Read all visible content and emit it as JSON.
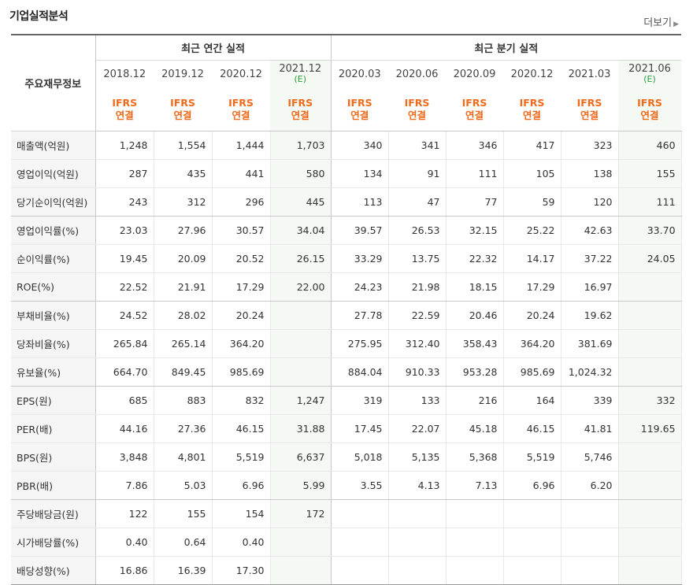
{
  "header": {
    "title": "기업실적분석",
    "more_label": "더보기"
  },
  "table": {
    "row_header_label": "주요재무정보",
    "annual_label": "최근 연간 실적",
    "quarter_label": "최근 분기 실적",
    "estimate_mark": "(E)",
    "periods": [
      {
        "label": "2018.12",
        "ifrs": "IFRS",
        "consol": "연결"
      },
      {
        "label": "2019.12",
        "ifrs": "IFRS",
        "consol": "연결"
      },
      {
        "label": "2020.12",
        "ifrs": "IFRS",
        "consol": "연결"
      },
      {
        "label": "2021.12",
        "ifrs": "IFRS",
        "consol": "연결"
      },
      {
        "label": "2020.03",
        "ifrs": "IFRS",
        "consol": "연결"
      },
      {
        "label": "2020.06",
        "ifrs": "IFRS",
        "consol": "연결"
      },
      {
        "label": "2020.09",
        "ifrs": "IFRS",
        "consol": "연결"
      },
      {
        "label": "2020.12",
        "ifrs": "IFRS",
        "consol": "연결"
      },
      {
        "label": "2021.03",
        "ifrs": "IFRS",
        "consol": "연결"
      },
      {
        "label": "2021.06",
        "ifrs": "IFRS",
        "consol": "연결"
      }
    ],
    "rows": [
      {
        "label": "매출액(억원)",
        "values": [
          "1,248",
          "1,554",
          "1,444",
          "1,703",
          "340",
          "341",
          "346",
          "417",
          "323",
          "460"
        ]
      },
      {
        "label": "영업이익(억원)",
        "values": [
          "287",
          "435",
          "441",
          "580",
          "134",
          "91",
          "111",
          "105",
          "138",
          "155"
        ]
      },
      {
        "label": "당기순이익(억원)",
        "values": [
          "243",
          "312",
          "296",
          "445",
          "113",
          "47",
          "77",
          "59",
          "120",
          "111"
        ]
      },
      {
        "label": "영업이익률(%)",
        "values": [
          "23.03",
          "27.96",
          "30.57",
          "34.04",
          "39.57",
          "26.53",
          "32.15",
          "25.22",
          "42.63",
          "33.70"
        ]
      },
      {
        "label": "순이익률(%)",
        "values": [
          "19.45",
          "20.09",
          "20.52",
          "26.15",
          "33.29",
          "13.75",
          "22.32",
          "14.17",
          "37.22",
          "24.05"
        ]
      },
      {
        "label": "ROE(%)",
        "values": [
          "22.52",
          "21.91",
          "17.29",
          "22.00",
          "24.23",
          "21.98",
          "18.15",
          "17.29",
          "16.97",
          ""
        ]
      },
      {
        "label": "부채비율(%)",
        "values": [
          "24.52",
          "28.02",
          "20.24",
          "",
          "27.78",
          "22.59",
          "20.46",
          "20.24",
          "19.62",
          ""
        ]
      },
      {
        "label": "당좌비율(%)",
        "values": [
          "265.84",
          "265.14",
          "364.20",
          "",
          "275.95",
          "312.40",
          "358.43",
          "364.20",
          "381.69",
          ""
        ]
      },
      {
        "label": "유보율(%)",
        "values": [
          "664.70",
          "849.45",
          "985.69",
          "",
          "884.04",
          "910.33",
          "953.28",
          "985.69",
          "1,024.32",
          ""
        ]
      },
      {
        "label": "EPS(원)",
        "values": [
          "685",
          "883",
          "832",
          "1,247",
          "319",
          "133",
          "216",
          "164",
          "339",
          "332"
        ]
      },
      {
        "label": "PER(배)",
        "values": [
          "44.16",
          "27.36",
          "46.15",
          "31.88",
          "17.45",
          "22.07",
          "45.18",
          "46.15",
          "41.81",
          "119.65"
        ]
      },
      {
        "label": "BPS(원)",
        "values": [
          "3,848",
          "4,801",
          "5,519",
          "6,637",
          "5,018",
          "5,135",
          "5,368",
          "5,519",
          "5,746",
          ""
        ]
      },
      {
        "label": "PBR(배)",
        "values": [
          "7.86",
          "5.03",
          "6.96",
          "5.99",
          "3.55",
          "4.13",
          "7.13",
          "6.96",
          "6.20",
          ""
        ]
      },
      {
        "label": "주당배당금(원)",
        "values": [
          "122",
          "155",
          "154",
          "172",
          "",
          "",
          "",
          "",
          "",
          ""
        ]
      },
      {
        "label": "시가배당률(%)",
        "values": [
          "0.40",
          "0.64",
          "0.40",
          "",
          "",
          "",
          "",
          "",
          "",
          ""
        ]
      },
      {
        "label": "배당성향(%)",
        "values": [
          "16.86",
          "16.39",
          "17.30",
          "",
          "",
          "",
          "",
          "",
          "",
          ""
        ]
      }
    ]
  },
  "colors": {
    "accent_orange": "#f06a1c",
    "estimate_green": "#2b9a3d",
    "estimate_bg": "#f4f9f3",
    "label_bg": "#f5f5f5"
  }
}
